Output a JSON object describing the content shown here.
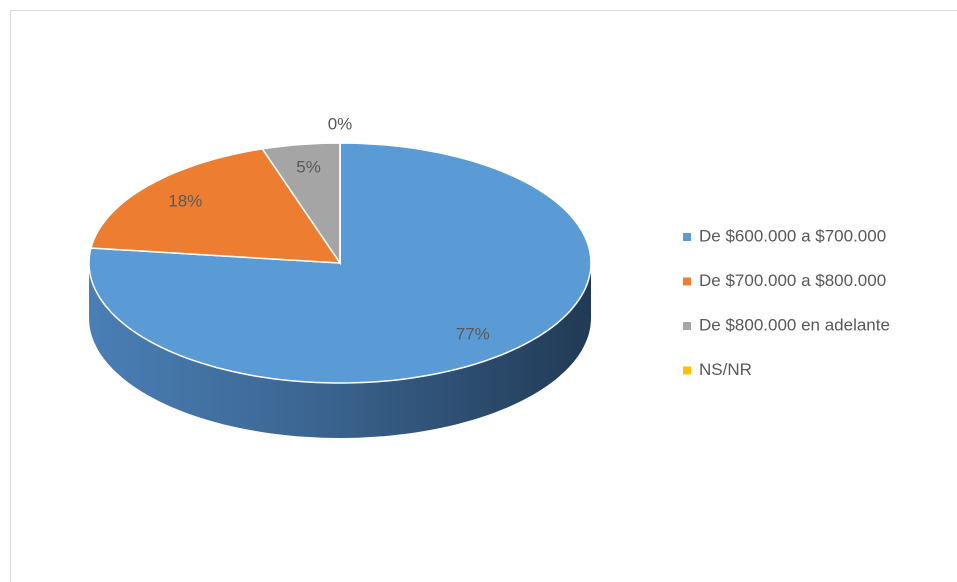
{
  "chart_data": {
    "type": "pie3d",
    "categories": [
      "De $600.000 a $700.000",
      "De $700.000 a $800.000",
      "De $800.000 en adelante",
      "NS/NR"
    ],
    "values": [
      77,
      18,
      5,
      0
    ],
    "value_labels": [
      "77%",
      "18%",
      "5%",
      "0%"
    ],
    "colors": [
      "#5b9bd5",
      "#ed7d31",
      "#a5a5a5",
      "#ffc000"
    ],
    "legend": "right"
  }
}
